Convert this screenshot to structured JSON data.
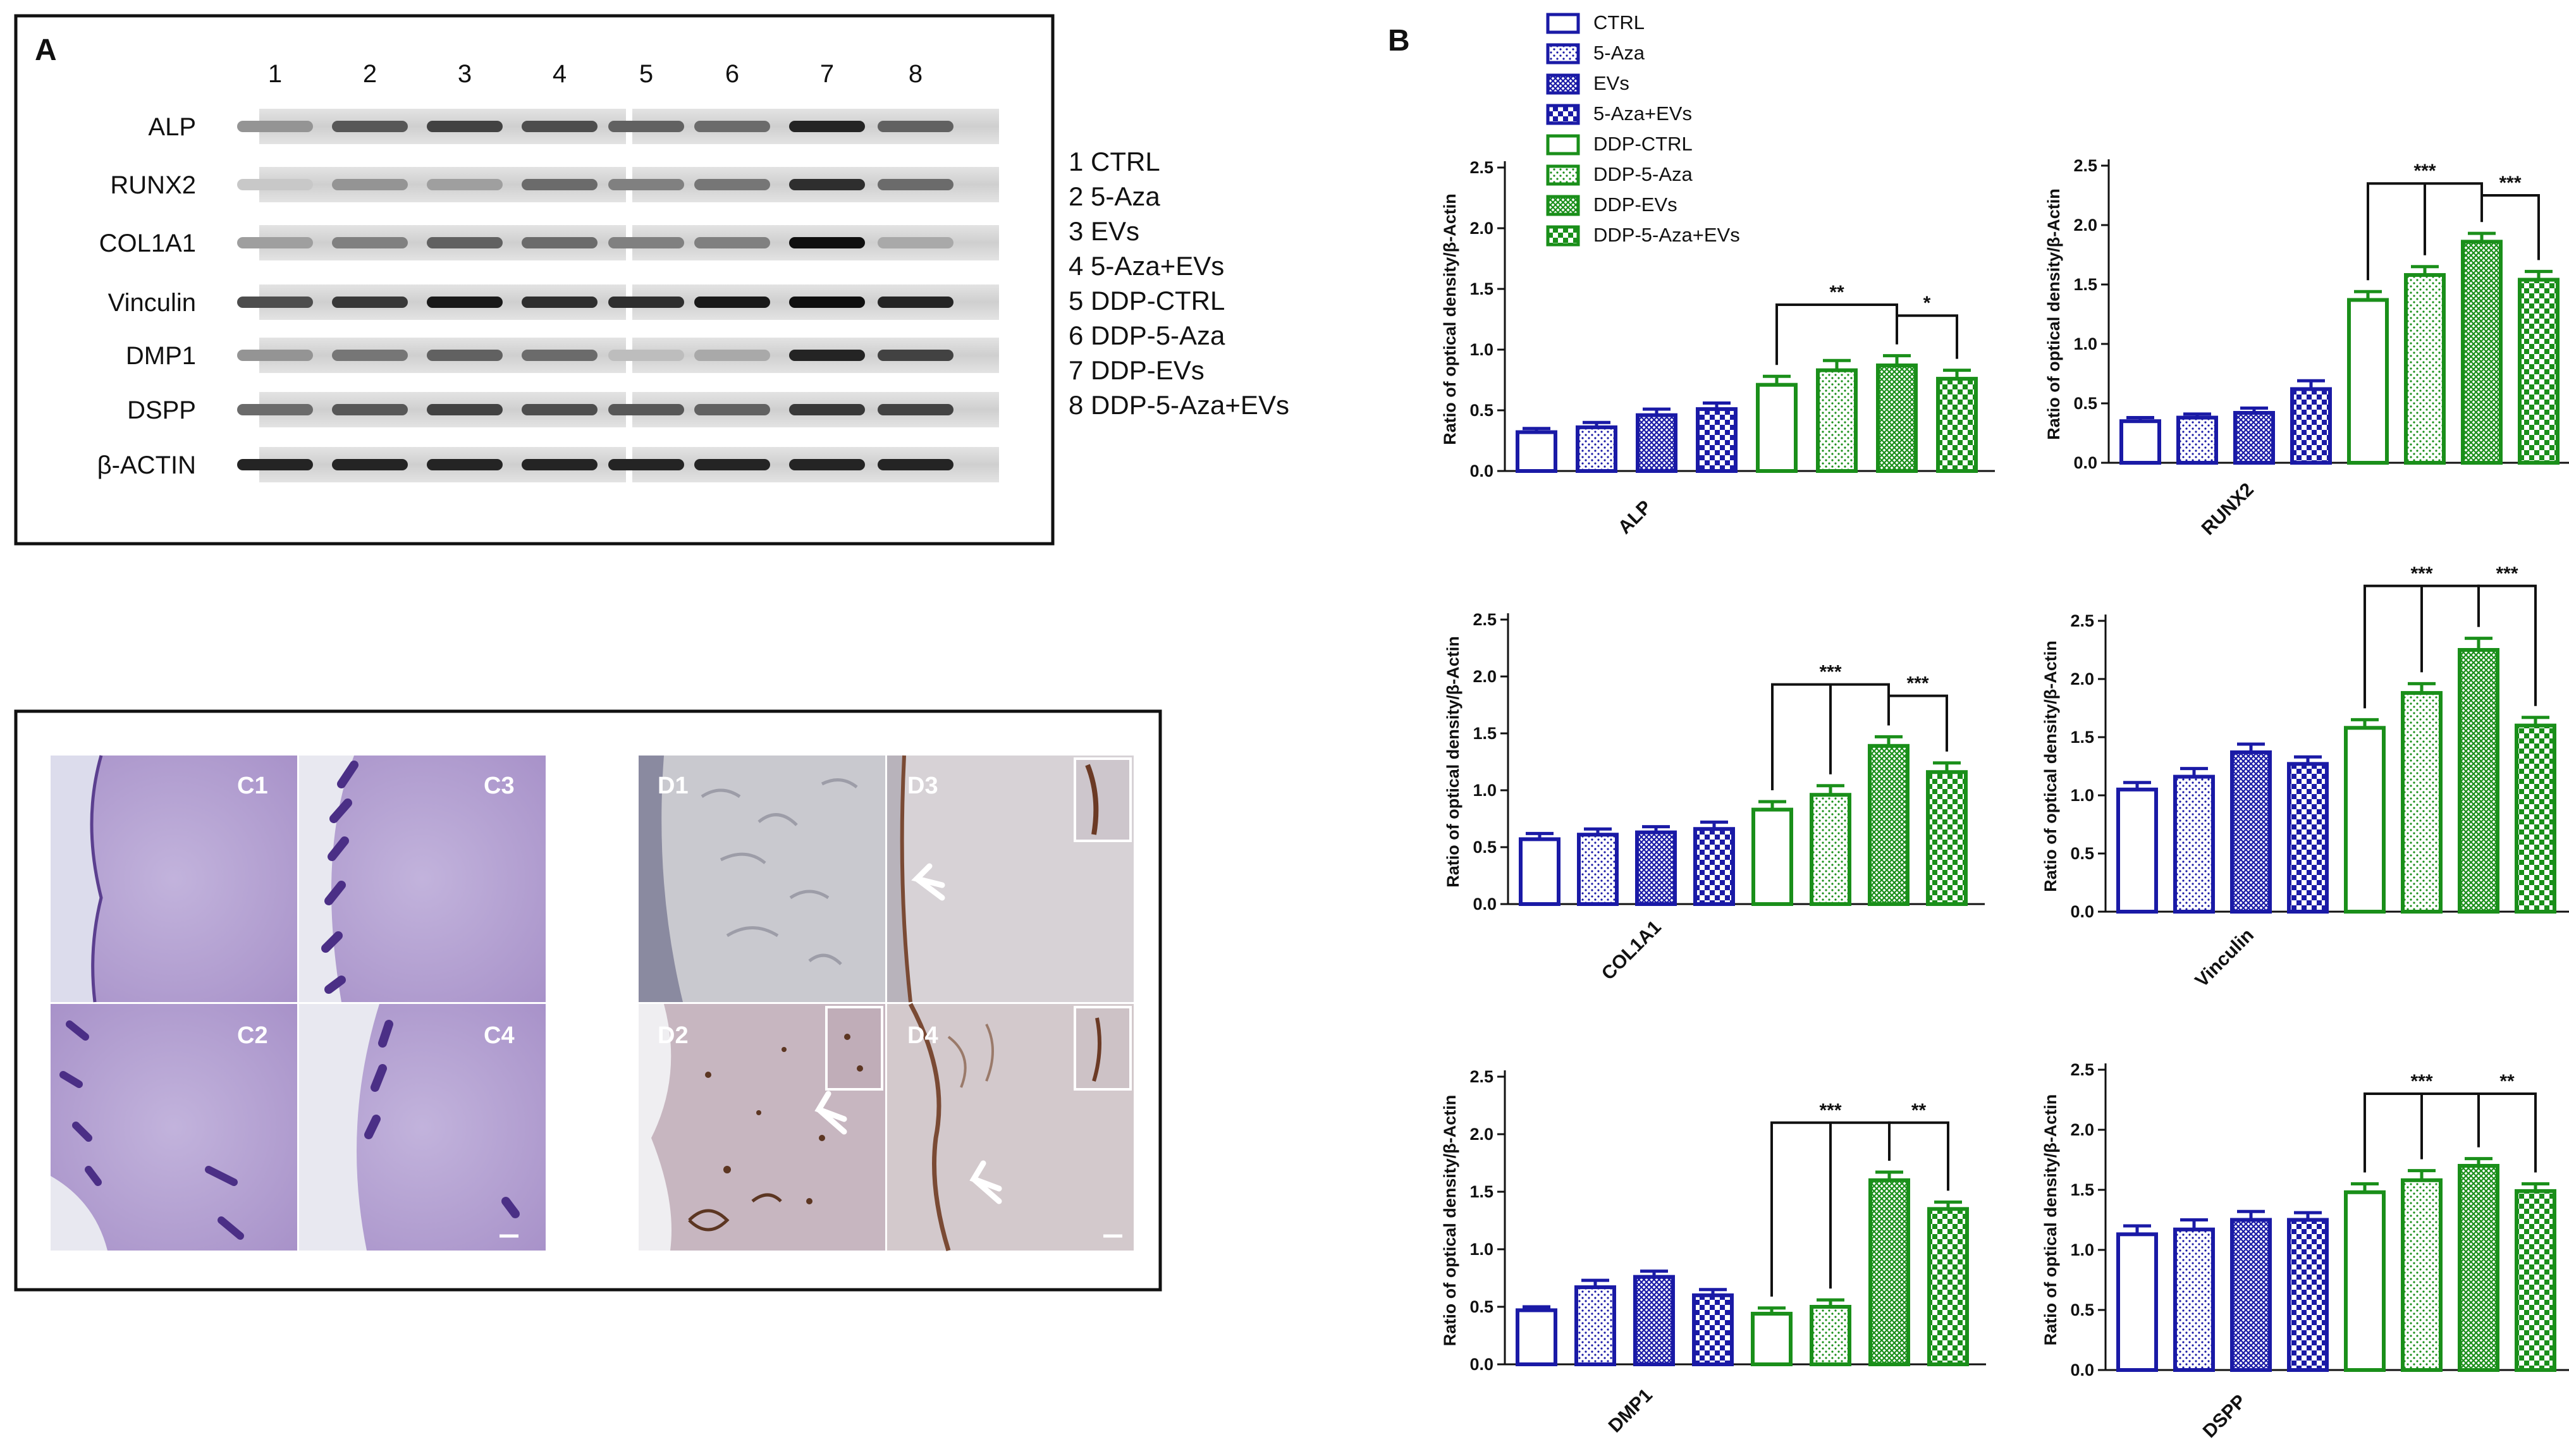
{
  "panel_a": {
    "letter": "A",
    "lane_numbers": [
      "1",
      "2",
      "3",
      "4",
      "5",
      "6",
      "7",
      "8"
    ],
    "blots": [
      {
        "label": "ALP",
        "intensity": [
          0.35,
          0.65,
          0.75,
          0.7,
          0.6,
          0.55,
          0.9,
          0.6
        ]
      },
      {
        "label": "RUNX2",
        "intensity": [
          0.1,
          0.35,
          0.3,
          0.55,
          0.45,
          0.5,
          0.85,
          0.55
        ]
      },
      {
        "label": "COL1A1",
        "intensity": [
          0.3,
          0.45,
          0.6,
          0.55,
          0.45,
          0.45,
          1.0,
          0.25
        ]
      },
      {
        "label": "Vinculin",
        "intensity": [
          0.7,
          0.8,
          0.95,
          0.85,
          0.85,
          0.95,
          1.0,
          0.9
        ]
      },
      {
        "label": "DMP1",
        "intensity": [
          0.35,
          0.5,
          0.6,
          0.55,
          0.15,
          0.25,
          0.9,
          0.75
        ]
      },
      {
        "label": "DSPP",
        "intensity": [
          0.55,
          0.65,
          0.75,
          0.7,
          0.65,
          0.6,
          0.8,
          0.75
        ]
      },
      {
        "label": "β-ACTIN",
        "intensity": [
          0.9,
          0.9,
          0.9,
          0.9,
          0.9,
          0.9,
          0.9,
          0.9
        ]
      }
    ],
    "legend": [
      "1 CTRL",
      "2 5-Aza",
      "3 EVs",
      "4 5-Aza+EVs",
      "5 DDP-CTRL",
      "6 DDP-5-Aza",
      "7 DDP-EVs",
      "8 DDP-5-Aza+EVs"
    ]
  },
  "panel_c": {
    "labels": [
      "C1",
      "C3",
      "C2",
      "C4"
    ],
    "color": "#b6a3d2"
  },
  "panel_d": {
    "labels": [
      "D1",
      "D3",
      "D2",
      "D4"
    ]
  },
  "panel_b": {
    "letter": "B",
    "legend": [
      "CTRL",
      "5-Aza",
      "EVs",
      "5-Aza+EVs",
      "DDP-CTRL",
      "DDP-5-Aza",
      "DDP-EVs",
      "DDP-5-Aza+EVs"
    ]
  },
  "colors": {
    "blue": "#1a1aa6",
    "green": "#1a8f1a"
  },
  "chart_data": [
    {
      "type": "bar",
      "category": "ALP",
      "ylabel": "Ratio of optical density/β-Actin",
      "ylim": [
        0,
        2.5
      ],
      "yticks": [
        "0.0",
        "0.5",
        "1.0",
        "1.5",
        "2.0",
        "2.5"
      ],
      "values": [
        0.32,
        0.36,
        0.46,
        0.51,
        0.71,
        0.83,
        0.87,
        0.76
      ],
      "errors": [
        0.03,
        0.04,
        0.05,
        0.05,
        0.07,
        0.08,
        0.08,
        0.07
      ],
      "significance": [
        {
          "from": 4,
          "to": 6,
          "label": "**",
          "y": 1.37,
          "mids": []
        },
        {
          "from": 6,
          "to": 7,
          "label": "*",
          "y": 1.28,
          "mids": []
        }
      ]
    },
    {
      "type": "bar",
      "category": "RUNX2",
      "ylabel": "Ratio of optical density/β-Actin",
      "ylim": [
        0,
        2.5
      ],
      "yticks": [
        "0.0",
        "0.5",
        "1.0",
        "1.5",
        "2.0",
        "2.5"
      ],
      "values": [
        0.35,
        0.38,
        0.42,
        0.62,
        1.37,
        1.58,
        1.86,
        1.54
      ],
      "errors": [
        0.03,
        0.03,
        0.04,
        0.07,
        0.07,
        0.07,
        0.07,
        0.07
      ],
      "significance": [
        {
          "from": 4,
          "to": 6,
          "label": "***",
          "y": 2.35,
          "mids": [
            5
          ]
        },
        {
          "from": 6,
          "to": 7,
          "label": "***",
          "y": 2.25,
          "mids": []
        }
      ]
    },
    {
      "type": "bar",
      "category": "COL1A1",
      "ylabel": "Ratio of optical density/β-Actin",
      "ylim": [
        0,
        2.5
      ],
      "yticks": [
        "0.0",
        "0.5",
        "1.0",
        "1.5",
        "2.0",
        "2.5"
      ],
      "values": [
        0.57,
        0.61,
        0.63,
        0.66,
        0.83,
        0.96,
        1.39,
        1.16
      ],
      "errors": [
        0.05,
        0.05,
        0.05,
        0.06,
        0.07,
        0.08,
        0.08,
        0.08
      ],
      "significance": [
        {
          "from": 4,
          "to": 6,
          "label": "***",
          "y": 1.93,
          "mids": [
            5
          ]
        },
        {
          "from": 6,
          "to": 7,
          "label": "***",
          "y": 1.83,
          "mids": []
        }
      ]
    },
    {
      "type": "bar",
      "category": "Vinculin",
      "ylabel": "Ratio of optical density/β-Actin",
      "ylim": [
        0,
        2.5
      ],
      "yticks": [
        "0.0",
        "0.5",
        "1.0",
        "1.5",
        "2.0",
        "2.5"
      ],
      "values": [
        1.05,
        1.16,
        1.37,
        1.27,
        1.58,
        1.88,
        2.25,
        1.6
      ],
      "errors": [
        0.06,
        0.07,
        0.07,
        0.06,
        0.07,
        0.08,
        0.1,
        0.07
      ],
      "significance": [
        {
          "from": 4,
          "to": 6,
          "label": "***",
          "y": 2.8,
          "mids": [
            5
          ]
        },
        {
          "from": 6,
          "to": 7,
          "label": "***",
          "y": 2.8,
          "mids": []
        }
      ]
    },
    {
      "type": "bar",
      "category": "DMP1",
      "ylabel": "Ratio of optical density/β-Actin",
      "ylim": [
        0,
        2.5
      ],
      "yticks": [
        "0.0",
        "0.5",
        "1.0",
        "1.5",
        "2.0",
        "2.5"
      ],
      "values": [
        0.47,
        0.67,
        0.76,
        0.6,
        0.44,
        0.5,
        1.6,
        1.35
      ],
      "errors": [
        0.03,
        0.06,
        0.05,
        0.05,
        0.05,
        0.06,
        0.07,
        0.06
      ],
      "significance": [
        {
          "from": 4,
          "to": 6,
          "label": "***",
          "y": 2.1,
          "mids": [
            5
          ]
        },
        {
          "from": 6,
          "to": 7,
          "label": "**",
          "y": 2.1,
          "mids": []
        }
      ]
    },
    {
      "type": "bar",
      "category": "DSPP",
      "ylabel": "Ratio of optical density/β-Actin",
      "ylim": [
        0,
        2.5
      ],
      "yticks": [
        "0.0",
        "0.5",
        "1.0",
        "1.5",
        "2.0",
        "2.5"
      ],
      "values": [
        1.13,
        1.17,
        1.25,
        1.25,
        1.48,
        1.58,
        1.7,
        1.49
      ],
      "errors": [
        0.07,
        0.08,
        0.07,
        0.06,
        0.07,
        0.08,
        0.06,
        0.06
      ],
      "significance": [
        {
          "from": 4,
          "to": 6,
          "label": "***",
          "y": 2.3,
          "mids": [
            5
          ]
        },
        {
          "from": 6,
          "to": 7,
          "label": "**",
          "y": 2.3,
          "mids": []
        }
      ]
    }
  ]
}
